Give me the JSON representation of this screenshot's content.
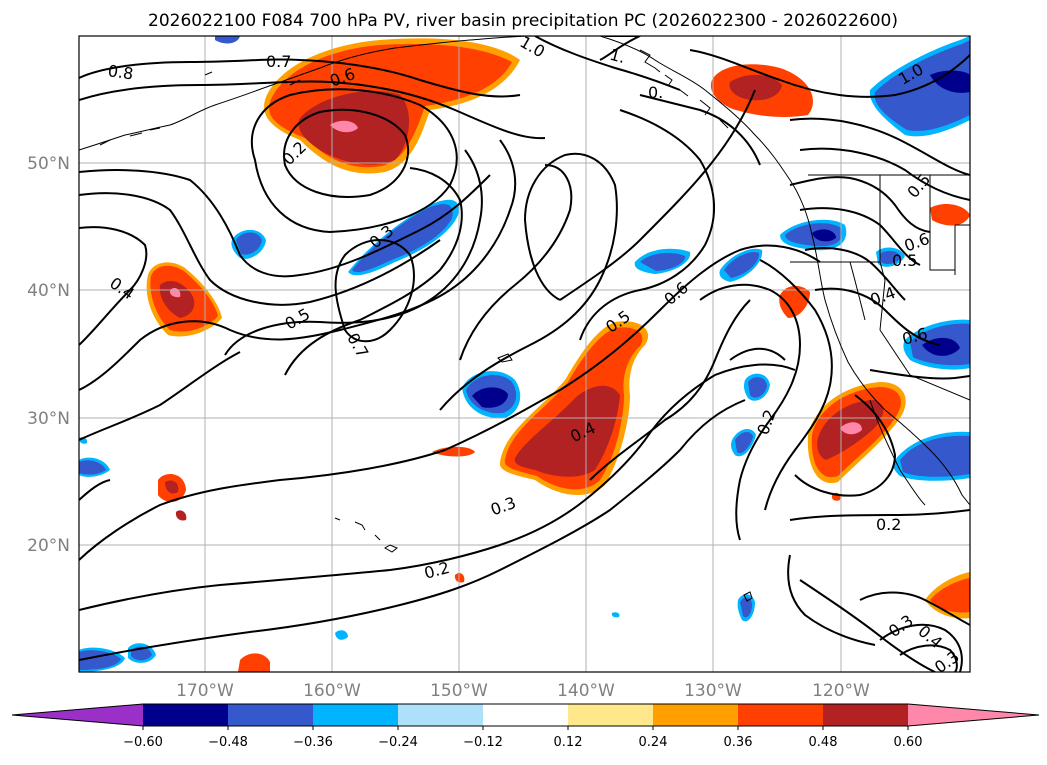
{
  "title": "2026022100 F084 700 hPa PV, river basin precipitation PC (2026022300 - 2026022600)",
  "lat_labels": [
    "50°N",
    "40°N",
    "30°N",
    "20°N"
  ],
  "lon_labels": [
    "170°W",
    "160°W",
    "150°W",
    "140°W",
    "130°W",
    "120°W"
  ],
  "colorbar": {
    "ticks": [
      "−0.60",
      "−0.48",
      "−0.36",
      "−0.24",
      "−0.12",
      "0.12",
      "0.24",
      "0.36",
      "0.48",
      "0.60"
    ],
    "colors": [
      "#9a30c8",
      "#00008c",
      "#3558cc",
      "#00b4ff",
      "#aee0fa",
      "#ffffff",
      "#ffe88c",
      "#ffa000",
      "#ff4000",
      "#b22222",
      "#ff88aa"
    ],
    "extend": "both"
  },
  "contour_labels": [
    "0.8",
    "0.7",
    "0.6",
    "1.0",
    "1.",
    "0.",
    "0.2",
    "0.3",
    "0.4",
    "0.5",
    "0.7",
    "0.5",
    "0.6",
    "0.4",
    "0.3",
    "0.2",
    "0.2",
    "0.6",
    "0.5",
    "0.4",
    "0.6",
    "1.0",
    "0.5",
    "0.3",
    "0.4",
    "0.3",
    "0.2"
  ]
}
